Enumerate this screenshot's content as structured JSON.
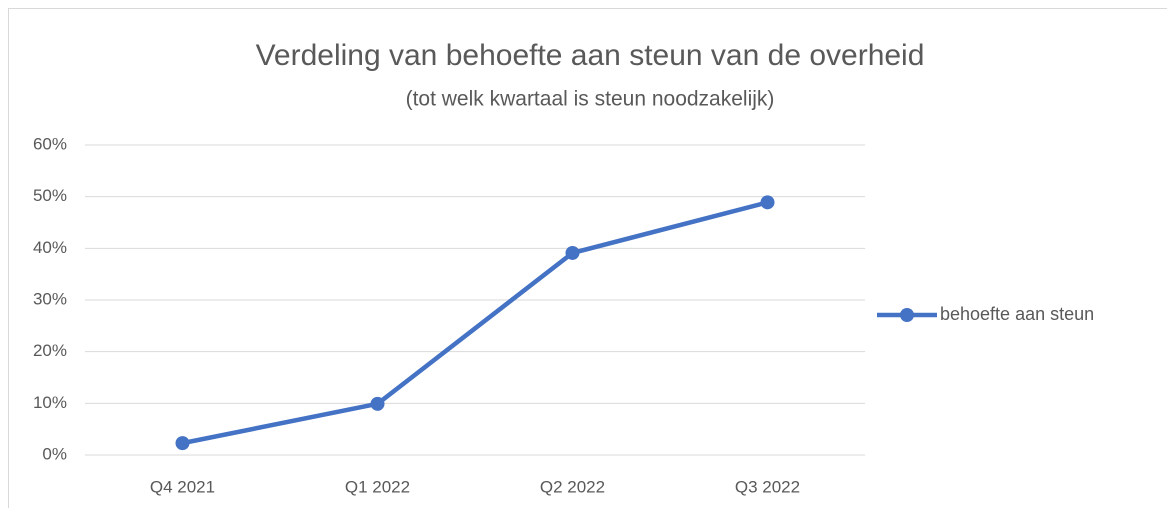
{
  "chart_data": {
    "type": "line",
    "title": "Verdeling van behoefte aan steun van de overheid",
    "subtitle": "(tot welk kwartaal is steun noodzakelijk)",
    "categories": [
      "Q4 2021",
      "Q1 2022",
      "Q2 2022",
      "Q3 2022"
    ],
    "series": [
      {
        "name": "behoefte aan steun",
        "color": "#4472c4",
        "values": [
          2.3,
          9.9,
          39.1,
          48.9
        ]
      }
    ],
    "ylim": [
      0,
      60
    ],
    "yticks": [
      {
        "value": 0,
        "label": "0%"
      },
      {
        "value": 10,
        "label": "10%"
      },
      {
        "value": 20,
        "label": "20%"
      },
      {
        "value": 30,
        "label": "30%"
      },
      {
        "value": 40,
        "label": "40%"
      },
      {
        "value": 50,
        "label": "50%"
      },
      {
        "value": 60,
        "label": "60%"
      }
    ],
    "grid": true,
    "legend": "right"
  }
}
